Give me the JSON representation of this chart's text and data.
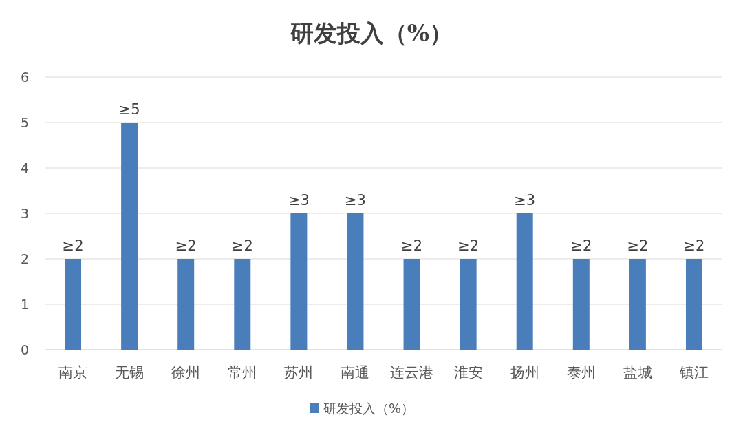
{
  "chart_data": {
    "type": "bar",
    "title": "研发投入（%）",
    "categories": [
      "南京",
      "无锡",
      "徐州",
      "常州",
      "苏州",
      "南通",
      "连云港",
      "淮安",
      "扬州",
      "泰州",
      "盐城",
      "镇江"
    ],
    "series": [
      {
        "name": "研发投入（%）",
        "color": "#4a7ebb",
        "values": [
          2,
          5,
          2,
          2,
          3,
          3,
          2,
          2,
          3,
          2,
          2,
          2
        ],
        "value_labels": [
          "≥2",
          "≥5",
          "≥2",
          "≥2",
          "≥3",
          "≥3",
          "≥2",
          "≥2",
          "≥3",
          "≥2",
          "≥2",
          "≥2"
        ]
      }
    ],
    "ylim": [
      0,
      6
    ],
    "yticks": [
      0,
      1,
      2,
      3,
      4,
      5,
      6
    ],
    "grid": "y",
    "legend": "bottom"
  }
}
